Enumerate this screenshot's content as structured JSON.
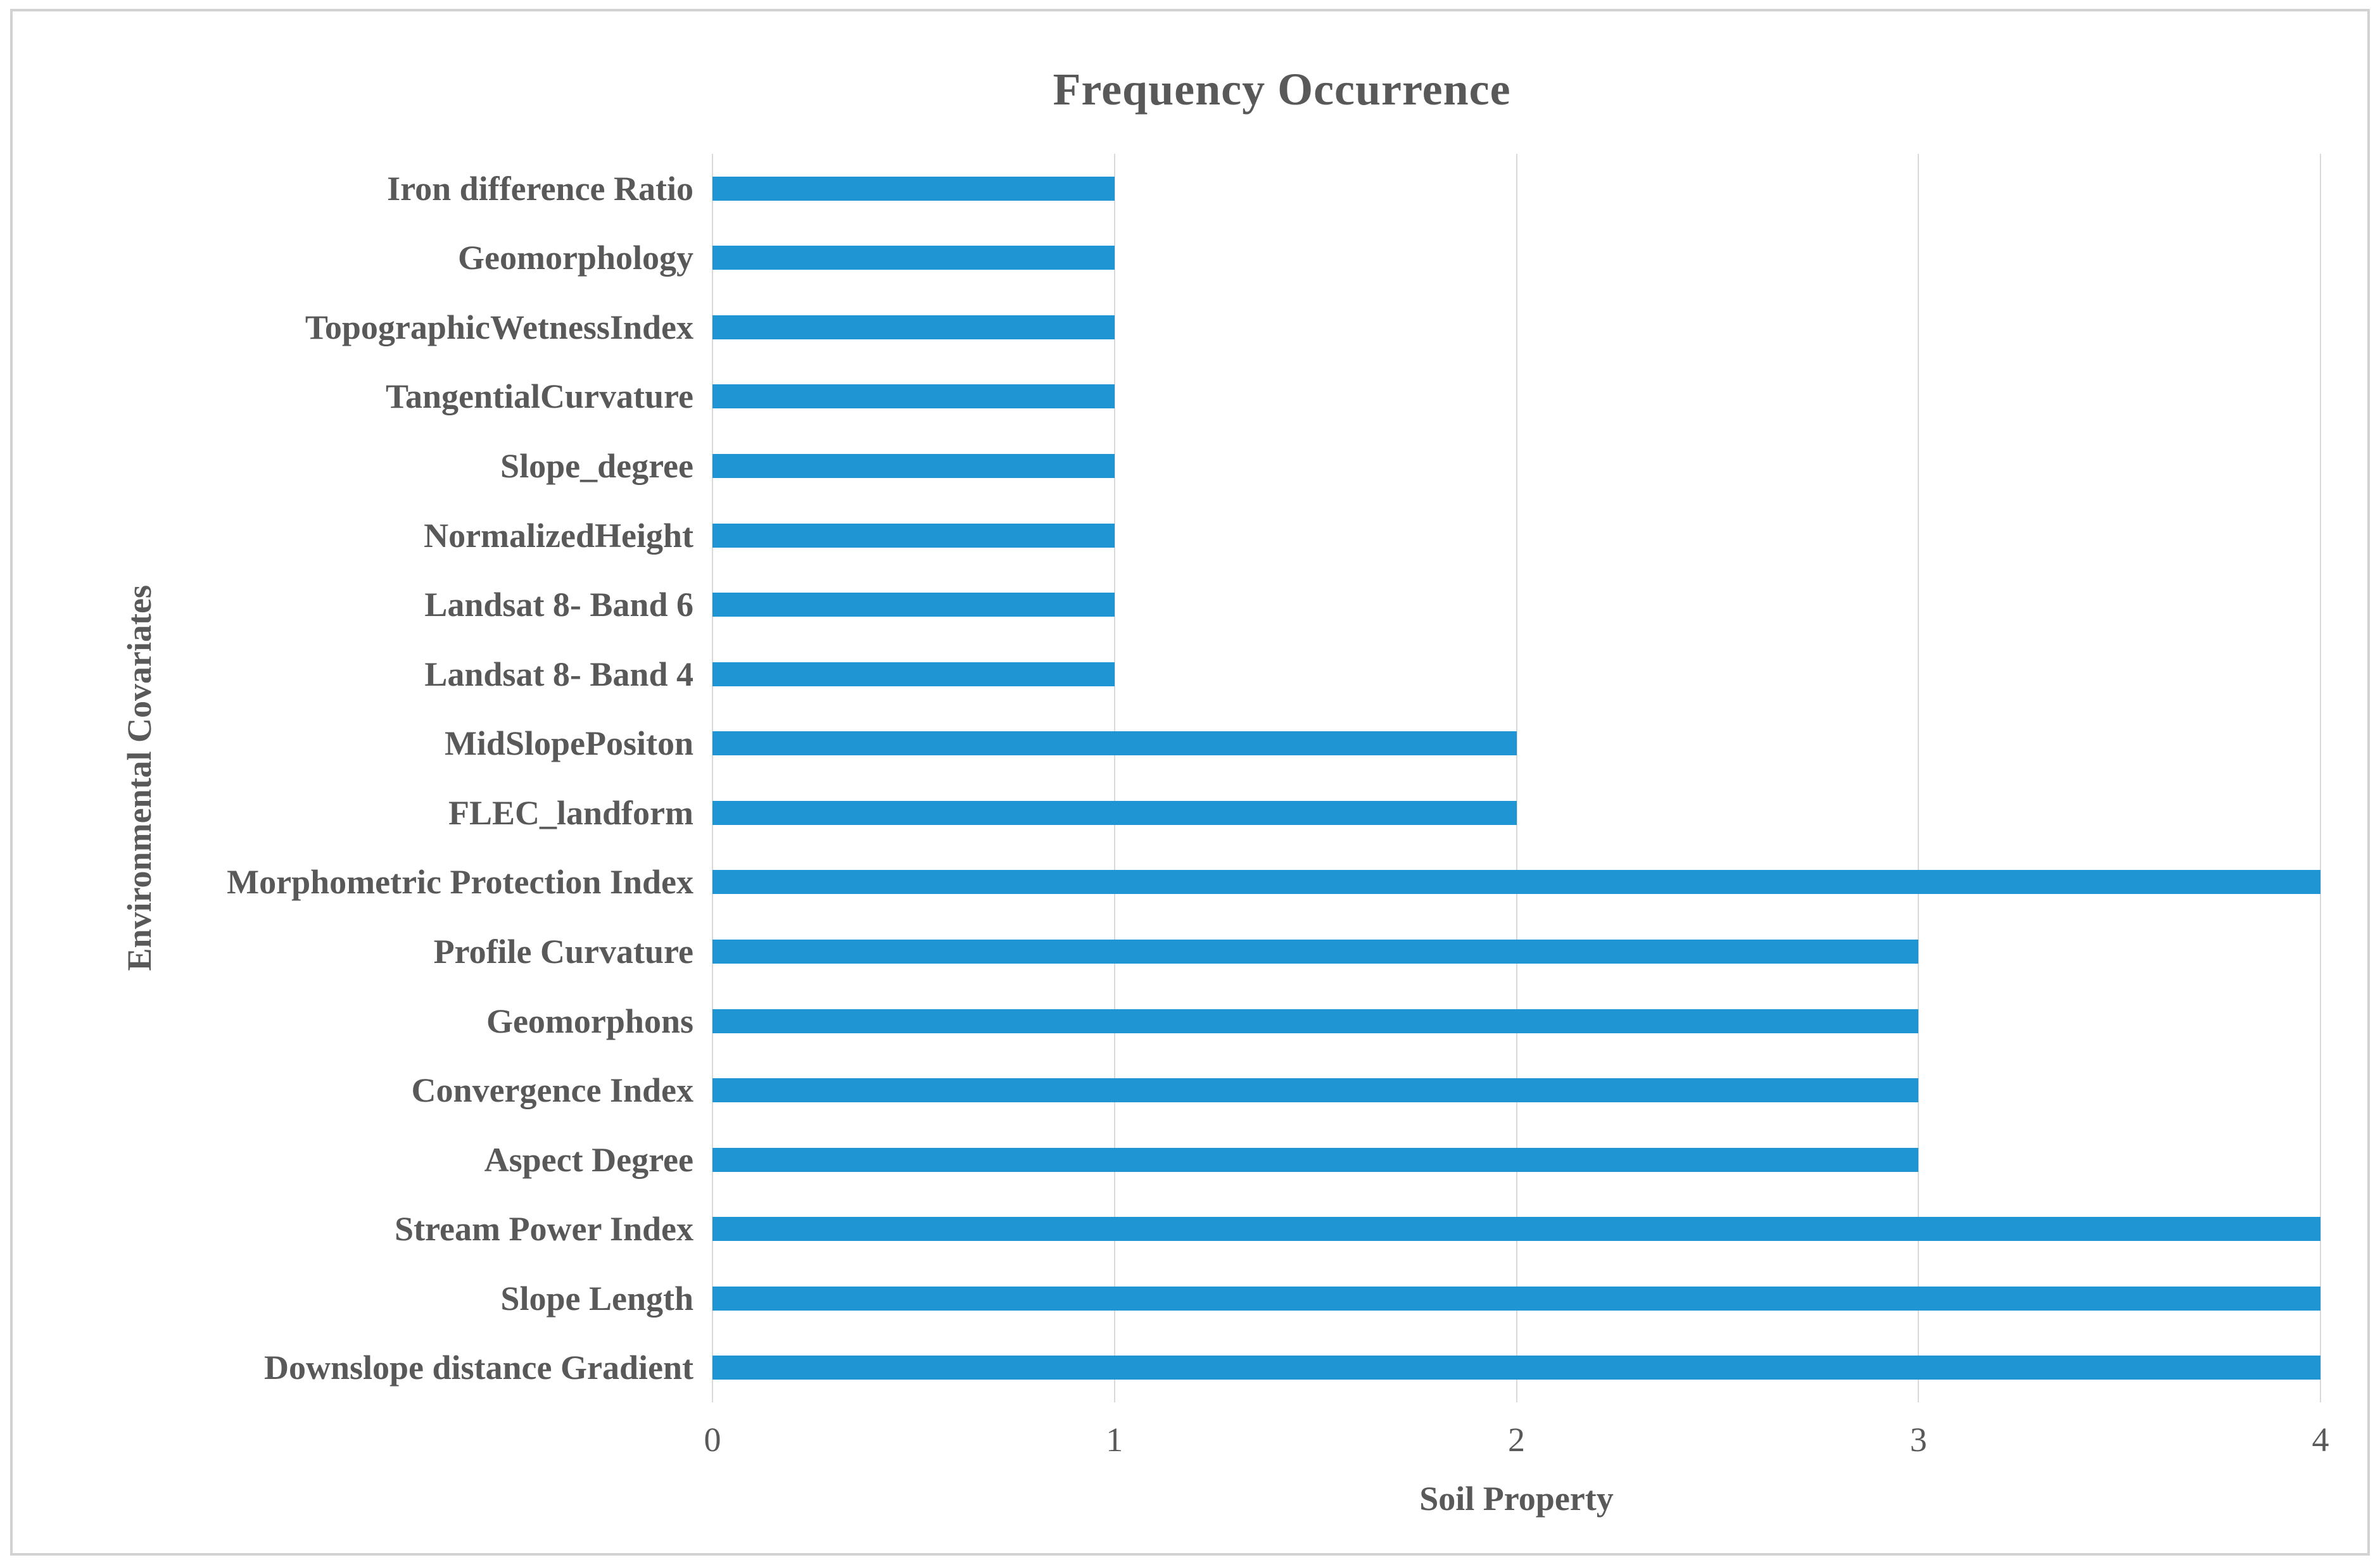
{
  "chart_data": {
    "type": "bar",
    "orientation": "horizontal",
    "title": "Frequency Occurrence",
    "xlabel": "Soil Property",
    "ylabel": "Environmental Covariates",
    "xlim": [
      0,
      4
    ],
    "x_ticks": [
      "0",
      "1",
      "2",
      "3",
      "4"
    ],
    "grid": "vertical-gridlines",
    "legend": "none",
    "categories": [
      "Iron difference Ratio",
      "Geomorphology",
      "TopographicWetnessIndex",
      "TangentialCurvature",
      "Slope_degree",
      "NormalizedHeight",
      "Landsat 8- Band 6",
      "Landsat 8- Band 4",
      "MidSlopePositon",
      "FLEC_landform",
      "Morphometric Protection Index",
      "Profile Curvature",
      "Geomorphons",
      "Convergence Index",
      "Aspect Degree",
      "Stream Power Index",
      "Slope Length",
      "Downslope distance Gradient"
    ],
    "values": [
      1,
      1,
      1,
      1,
      1,
      1,
      1,
      1,
      2,
      2,
      4,
      3,
      3,
      3,
      3,
      4,
      4,
      4
    ]
  },
  "colors": {
    "bar": "#2095d3",
    "text": "#595959",
    "gridline": "#d9d9d9",
    "frame_border": "#d2d2d2",
    "background": "#ffffff"
  }
}
